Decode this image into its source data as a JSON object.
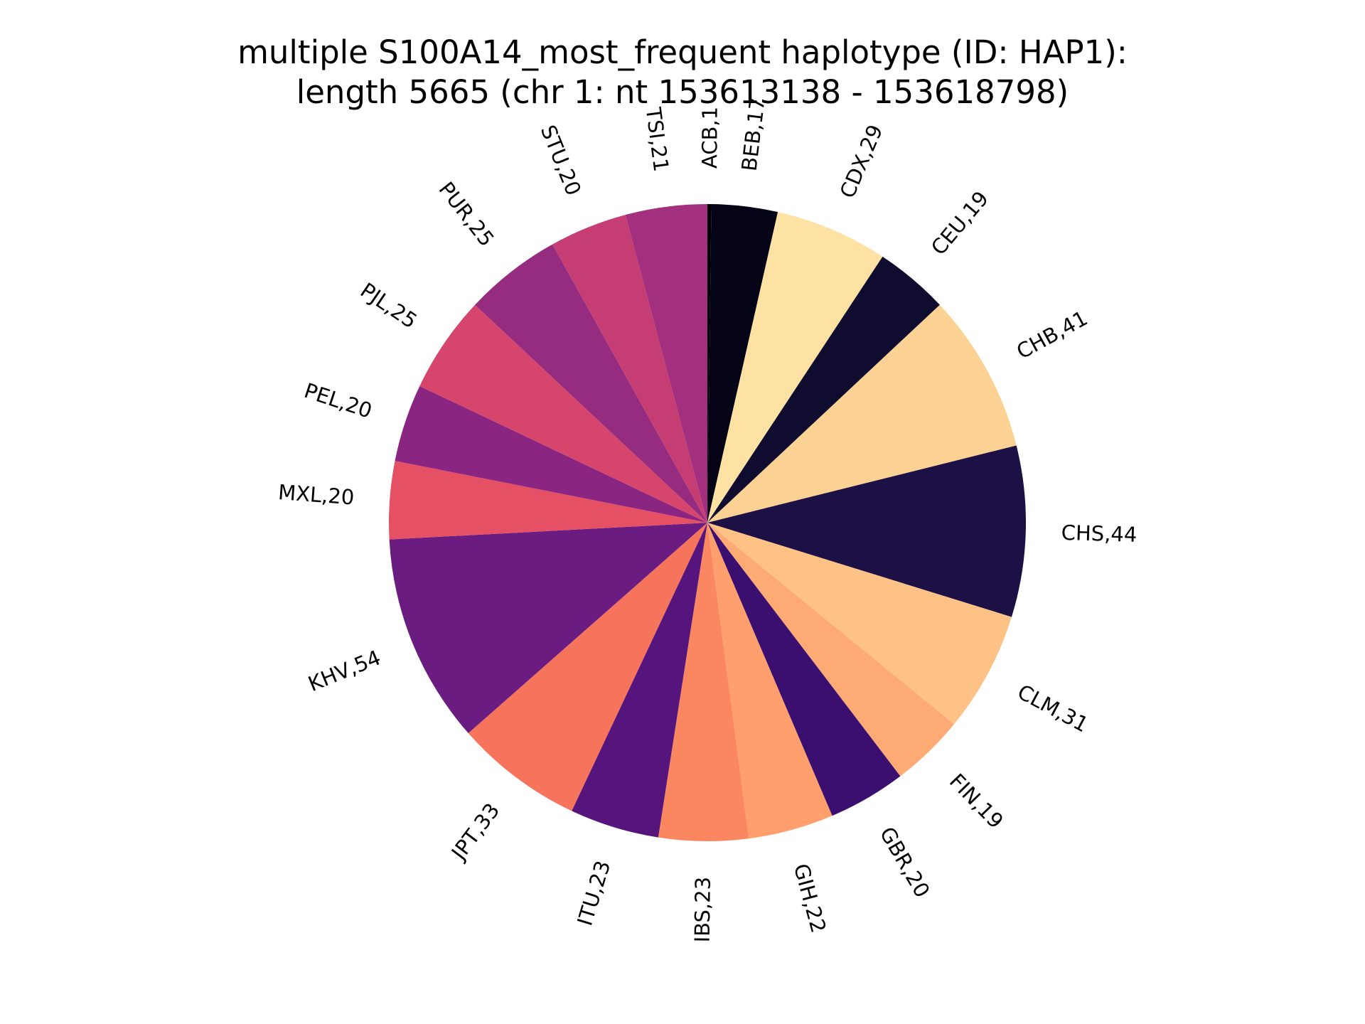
{
  "chart_data": {
    "type": "pie",
    "title_lines": [
      "multiple S100A14_most_frequent haplotype (ID: HAP1):",
      "length 5665 (chr 1: nt 153613138 - 153618798)"
    ],
    "slices": [
      {
        "label": "ACB,1",
        "value": 1,
        "color": "#000004"
      },
      {
        "label": "BEB,17",
        "value": 17,
        "color": "#050416"
      },
      {
        "label": "CDX,29",
        "value": 29,
        "color": "#fde2a3"
      },
      {
        "label": "CEU,19",
        "value": 19,
        "color": "#100c2f"
      },
      {
        "label": "CHB,41",
        "value": 41,
        "color": "#fcd294"
      },
      {
        "label": "CHS,44",
        "value": 44,
        "color": "#1c1044"
      },
      {
        "label": "CLM,31",
        "value": 31,
        "color": "#fec287"
      },
      {
        "label": "FIN,19",
        "value": 19,
        "color": "#feaa74"
      },
      {
        "label": "GBR,20",
        "value": 20,
        "color": "#3b0f70"
      },
      {
        "label": "GIH,22",
        "value": 22,
        "color": "#fe9f6d"
      },
      {
        "label": "IBS,23",
        "value": 23,
        "color": "#fb8761"
      },
      {
        "label": "ITU,23",
        "value": 23,
        "color": "#56147d"
      },
      {
        "label": "JPT,33",
        "value": 33,
        "color": "#f6735c"
      },
      {
        "label": "KHV,54",
        "value": 54,
        "color": "#6a1c81"
      },
      {
        "label": "MXL,20",
        "value": 20,
        "color": "#e55064"
      },
      {
        "label": "PEL,20",
        "value": 20,
        "color": "#8a2581"
      },
      {
        "label": "PJL,25",
        "value": 25,
        "color": "#d6456c"
      },
      {
        "label": "PUR,25",
        "value": 25,
        "color": "#962c80"
      },
      {
        "label": "STU,20",
        "value": 20,
        "color": "#c63d73"
      },
      {
        "label": "TSI,21",
        "value": 21,
        "color": "#a3307e"
      }
    ],
    "start": "top",
    "direction": "clockwise",
    "legend": "none"
  }
}
